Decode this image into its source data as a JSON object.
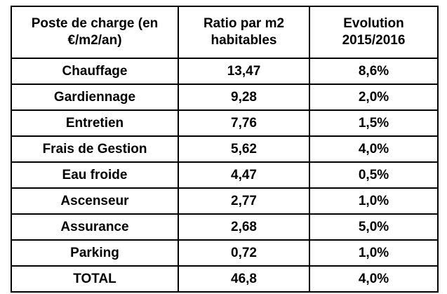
{
  "table": {
    "headers": [
      {
        "line1": "Poste de charge (en",
        "line2": "€/m2/an)"
      },
      {
        "line1": "Ratio par m2",
        "line2": "habitables"
      },
      {
        "line1": "Evolution",
        "line2": "2015/2016"
      }
    ],
    "rows": [
      {
        "poste": "Chauffage",
        "ratio": "13,47",
        "evolution": "8,6%"
      },
      {
        "poste": "Gardiennage",
        "ratio": "9,28",
        "evolution": "2,0%"
      },
      {
        "poste": "Entretien",
        "ratio": "7,76",
        "evolution": "1,5%"
      },
      {
        "poste": "Frais de Gestion",
        "ratio": "5,62",
        "evolution": "4,0%"
      },
      {
        "poste": "Eau froide",
        "ratio": "4,47",
        "evolution": "0,5%"
      },
      {
        "poste": "Ascenseur",
        "ratio": "2,77",
        "evolution": "1,0%"
      },
      {
        "poste": "Assurance",
        "ratio": "2,68",
        "evolution": "5,0%"
      },
      {
        "poste": "Parking",
        "ratio": "0,72",
        "evolution": "1,0%"
      },
      {
        "poste": "TOTAL",
        "ratio": "46,8",
        "evolution": "4,0%"
      }
    ]
  }
}
